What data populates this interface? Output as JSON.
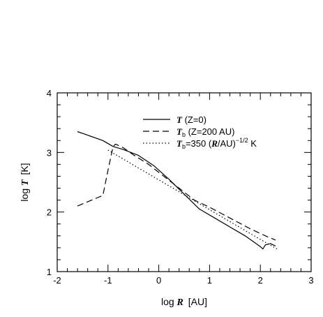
{
  "chart_data": {
    "type": "line",
    "xlabel": {
      "prefix": "log ",
      "var": "R",
      "unit": " [AU]"
    },
    "ylabel": {
      "prefix": "log ",
      "var": "T",
      "unit": " [K]"
    },
    "xlim": [
      -2,
      3
    ],
    "ylim": [
      1,
      4
    ],
    "x_ticks": [
      -2,
      -1,
      0,
      1,
      2,
      3
    ],
    "y_ticks": [
      1,
      2,
      3,
      4
    ],
    "x_tick_labels": [
      "-2",
      "-1",
      "0",
      "1",
      "2",
      "3"
    ],
    "y_tick_labels": [
      "1",
      "2",
      "3",
      "4"
    ],
    "legend_position": "top-right",
    "series": [
      {
        "name": "T (Z=0)",
        "legend": {
          "var": "T",
          "sub": "",
          "rest": " (Z=0)"
        },
        "style": "solid",
        "points": [
          [
            -1.6,
            3.35
          ],
          [
            -1.4,
            3.29
          ],
          [
            -1.1,
            3.2
          ],
          [
            -0.9,
            3.1
          ],
          [
            -0.7,
            3.05
          ],
          [
            -0.4,
            2.95
          ],
          [
            -0.1,
            2.78
          ],
          [
            0.2,
            2.55
          ],
          [
            0.5,
            2.3
          ],
          [
            0.8,
            2.05
          ],
          [
            1.1,
            1.9
          ],
          [
            1.4,
            1.75
          ],
          [
            1.7,
            1.6
          ],
          [
            1.9,
            1.48
          ],
          [
            2.0,
            1.42
          ],
          [
            2.05,
            1.38
          ],
          [
            2.1,
            1.45
          ],
          [
            2.2,
            1.47
          ],
          [
            2.3,
            1.43
          ]
        ]
      },
      {
        "name": "Tb (Z=200 AU)",
        "legend": {
          "var": "T",
          "sub": "b",
          "rest": " (Z=200 AU)"
        },
        "style": "dashed",
        "points": [
          [
            -1.6,
            2.1
          ],
          [
            -1.1,
            2.28
          ],
          [
            -1.0,
            2.7
          ],
          [
            -0.9,
            3.1
          ],
          [
            -0.85,
            3.14
          ],
          [
            -0.7,
            3.08
          ],
          [
            -0.5,
            2.96
          ],
          [
            -0.2,
            2.8
          ],
          [
            0.1,
            2.6
          ],
          [
            0.4,
            2.4
          ],
          [
            0.7,
            2.2
          ],
          [
            1.0,
            2.08
          ],
          [
            1.4,
            1.9
          ],
          [
            1.8,
            1.72
          ],
          [
            2.1,
            1.6
          ],
          [
            2.3,
            1.53
          ]
        ]
      },
      {
        "name": "Tb=350 (R/AU)^-1/2 K",
        "legend": {
          "var": "T",
          "sub": "b",
          "rest": "=350 (",
          "var2": "R",
          "rest2": "/AU)",
          "sup": "−1/2",
          "tail": " K"
        },
        "style": "dotted",
        "points": [
          [
            -1.0,
            3.04
          ],
          [
            -0.5,
            2.79
          ],
          [
            0.0,
            2.54
          ],
          [
            0.5,
            2.29
          ],
          [
            1.0,
            2.04
          ],
          [
            1.5,
            1.79
          ],
          [
            2.0,
            1.54
          ],
          [
            2.33,
            1.38
          ]
        ]
      }
    ]
  }
}
